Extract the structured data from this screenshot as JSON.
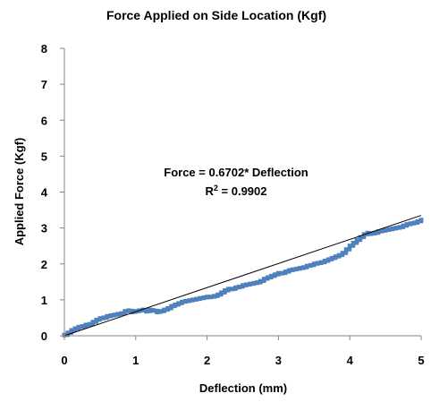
{
  "chart_data": {
    "type": "scatter",
    "title": "Force Applied on Side Location (Kgf)",
    "xlabel": "Deflection (mm)",
    "ylabel": "Applied Force (Kgf)",
    "xlim": [
      0,
      5
    ],
    "ylim": [
      0,
      8
    ],
    "xticks": [
      "0",
      "1",
      "2",
      "3",
      "4",
      "5"
    ],
    "yticks": [
      "0",
      "1",
      "2",
      "3",
      "4",
      "5",
      "6",
      "7",
      "8"
    ],
    "grid": false,
    "legend": "none",
    "colors": {
      "series": "#4F81BD",
      "trendline": "#000000"
    },
    "annotation": {
      "equation": "Force = 0.6702* Deflection",
      "r2_base": "R",
      "r2_sup": "2",
      "r2_value": " = 0.9902"
    },
    "trendline": {
      "slope": 0.6702,
      "intercept": 0,
      "x": [
        0,
        5
      ]
    },
    "series": [
      {
        "x": [
          0.0,
          0.05,
          0.1,
          0.15,
          0.2,
          0.25,
          0.3,
          0.35,
          0.4,
          0.45,
          0.5,
          0.55,
          0.6,
          0.65,
          0.7,
          0.75,
          0.8,
          0.85,
          0.9,
          0.95,
          1.0,
          1.05,
          1.1,
          1.15,
          1.2,
          1.25,
          1.3,
          1.35,
          1.4,
          1.45,
          1.5,
          1.55,
          1.6,
          1.65,
          1.7,
          1.75,
          1.8,
          1.85,
          1.9,
          1.95,
          2.0,
          2.05,
          2.1,
          2.15,
          2.2,
          2.25,
          2.3,
          2.35,
          2.4,
          2.45,
          2.5,
          2.55,
          2.6,
          2.65,
          2.7,
          2.75,
          2.8,
          2.85,
          2.9,
          2.95,
          3.0,
          3.05,
          3.1,
          3.15,
          3.2,
          3.25,
          3.3,
          3.35,
          3.4,
          3.45,
          3.5,
          3.55,
          3.6,
          3.65,
          3.7,
          3.75,
          3.8,
          3.85,
          3.9,
          3.95,
          4.0,
          4.05,
          4.1,
          4.15,
          4.2,
          4.25,
          4.3,
          4.35,
          4.4,
          4.45,
          4.5,
          4.55,
          4.6,
          4.65,
          4.7,
          4.75,
          4.8,
          4.85,
          4.9,
          4.95,
          5.0
        ],
        "y": [
          0.02,
          0.08,
          0.15,
          0.2,
          0.24,
          0.26,
          0.3,
          0.32,
          0.38,
          0.44,
          0.48,
          0.5,
          0.54,
          0.56,
          0.58,
          0.6,
          0.62,
          0.68,
          0.7,
          0.66,
          0.68,
          0.7,
          0.72,
          0.68,
          0.72,
          0.7,
          0.66,
          0.68,
          0.72,
          0.76,
          0.82,
          0.86,
          0.9,
          0.94,
          0.96,
          0.98,
          1.0,
          1.02,
          1.04,
          1.06,
          1.08,
          1.08,
          1.1,
          1.14,
          1.2,
          1.26,
          1.3,
          1.3,
          1.34,
          1.36,
          1.4,
          1.42,
          1.44,
          1.46,
          1.48,
          1.52,
          1.58,
          1.62,
          1.66,
          1.7,
          1.74,
          1.74,
          1.78,
          1.82,
          1.84,
          1.86,
          1.88,
          1.9,
          1.94,
          1.96,
          2.0,
          2.02,
          2.04,
          2.08,
          2.12,
          2.16,
          2.2,
          2.24,
          2.3,
          2.4,
          2.5,
          2.58,
          2.66,
          2.74,
          2.82,
          2.86,
          2.84,
          2.86,
          2.9,
          2.92,
          2.94,
          2.96,
          2.98,
          3.0,
          3.02,
          3.06,
          3.1,
          3.12,
          3.14,
          3.18,
          3.22
        ]
      }
    ]
  }
}
